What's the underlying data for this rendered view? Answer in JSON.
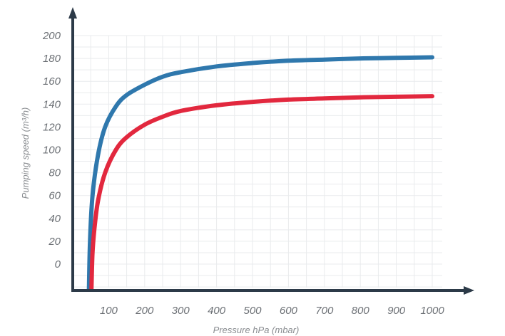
{
  "chart_data": {
    "type": "line",
    "title": "",
    "xlabel": "Pressure hPa (mbar)",
    "ylabel": "Pumping speed (m³/h)",
    "x_ticks": [
      "100",
      "200",
      "300",
      "400",
      "500",
      "600",
      "700",
      "800",
      "900",
      "1000"
    ],
    "y_ticks": [
      "0",
      "20",
      "40",
      "60",
      "80",
      "100",
      "120",
      "140",
      "160",
      "180",
      "200"
    ],
    "xlim": [
      0,
      1000
    ],
    "ylim": [
      -22,
      205
    ],
    "grid": true,
    "legend": "none",
    "series": [
      {
        "color": "#2f78ad",
        "points": [
          [
            45,
            -22
          ],
          [
            48,
            20
          ],
          [
            55,
            60
          ],
          [
            70,
            95
          ],
          [
            90,
            120
          ],
          [
            120,
            138
          ],
          [
            150,
            148
          ],
          [
            200,
            157
          ],
          [
            250,
            164
          ],
          [
            300,
            168
          ],
          [
            400,
            173
          ],
          [
            500,
            176
          ],
          [
            600,
            178
          ],
          [
            700,
            179
          ],
          [
            800,
            180
          ],
          [
            900,
            180.5
          ],
          [
            1000,
            181
          ]
        ]
      },
      {
        "color": "#e2283e",
        "points": [
          [
            52,
            -22
          ],
          [
            55,
            10
          ],
          [
            60,
            30
          ],
          [
            70,
            55
          ],
          [
            90,
            80
          ],
          [
            120,
            100
          ],
          [
            150,
            111
          ],
          [
            200,
            122
          ],
          [
            250,
            129
          ],
          [
            300,
            134
          ],
          [
            400,
            139
          ],
          [
            500,
            142
          ],
          [
            600,
            144
          ],
          [
            700,
            145
          ],
          [
            800,
            146
          ],
          [
            900,
            146.5
          ],
          [
            1000,
            147
          ]
        ]
      }
    ]
  }
}
